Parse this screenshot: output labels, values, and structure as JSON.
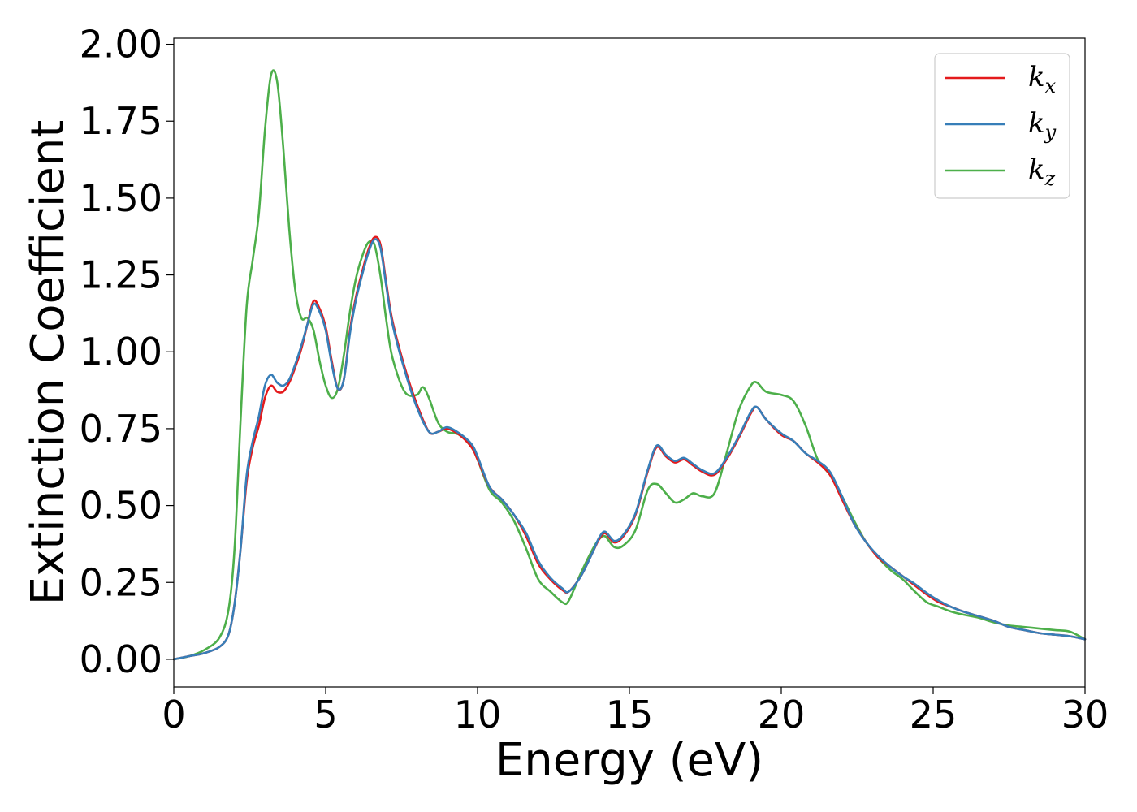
{
  "chart_data": {
    "type": "line",
    "title": "",
    "xlabel": "Energy (eV)",
    "ylabel": "Extinction Coefficient",
    "xlim": [
      0,
      30
    ],
    "ylim": [
      -0.09,
      2.02
    ],
    "x_ticks": [
      0,
      5,
      10,
      15,
      20,
      25,
      30
    ],
    "x_tick_labels": [
      "0",
      "5",
      "10",
      "15",
      "20",
      "25",
      "30"
    ],
    "y_ticks": [
      0,
      0.25,
      0.5,
      0.75,
      1.0,
      1.25,
      1.5,
      1.75,
      2.0
    ],
    "y_tick_labels": [
      "0.00",
      "0.25",
      "0.50",
      "0.75",
      "1.00",
      "1.25",
      "1.50",
      "1.75",
      "2.00"
    ],
    "grid": false,
    "legend": {
      "position": "top-right",
      "entries": [
        {
          "base": "k",
          "sub": "x",
          "color": "#e41a1c"
        },
        {
          "base": "k",
          "sub": "y",
          "color": "#377eb8"
        },
        {
          "base": "k",
          "sub": "z",
          "color": "#4daf4a"
        }
      ]
    },
    "series": [
      {
        "name": "kx",
        "color": "#e41a1c",
        "x": [
          0,
          0.5,
          1.0,
          1.5,
          1.8,
          2.0,
          2.2,
          2.4,
          2.6,
          2.8,
          3.0,
          3.2,
          3.4,
          3.6,
          3.8,
          4.0,
          4.2,
          4.4,
          4.6,
          4.8,
          5.0,
          5.2,
          5.4,
          5.6,
          5.8,
          6.0,
          6.2,
          6.4,
          6.6,
          6.8,
          7.0,
          7.2,
          7.6,
          8.0,
          8.4,
          8.7,
          9.0,
          9.4,
          9.8,
          10.0,
          10.4,
          10.8,
          11.2,
          11.6,
          12.0,
          12.4,
          12.8,
          13.0,
          13.4,
          13.8,
          14.0,
          14.2,
          14.5,
          14.8,
          15.2,
          15.6,
          15.9,
          16.2,
          16.5,
          16.8,
          17.1,
          17.4,
          17.8,
          18.2,
          18.6,
          19.0,
          19.2,
          19.5,
          20.0,
          20.4,
          20.8,
          21.2,
          21.6,
          22.0,
          22.4,
          22.8,
          23.2,
          23.6,
          24.0,
          24.4,
          24.8,
          25.2,
          25.6,
          26.0,
          26.5,
          27.0,
          27.5,
          28.0,
          28.5,
          29.0,
          29.5,
          30.0
        ],
        "y": [
          0.0,
          0.01,
          0.02,
          0.04,
          0.08,
          0.18,
          0.36,
          0.58,
          0.69,
          0.76,
          0.85,
          0.89,
          0.87,
          0.87,
          0.9,
          0.95,
          1.01,
          1.09,
          1.165,
          1.14,
          1.08,
          0.97,
          0.88,
          0.91,
          1.07,
          1.18,
          1.26,
          1.33,
          1.372,
          1.35,
          1.22,
          1.1,
          0.95,
          0.83,
          0.74,
          0.74,
          0.75,
          0.73,
          0.69,
          0.65,
          0.56,
          0.52,
          0.47,
          0.4,
          0.31,
          0.26,
          0.225,
          0.22,
          0.27,
          0.35,
          0.39,
          0.41,
          0.38,
          0.4,
          0.47,
          0.61,
          0.69,
          0.66,
          0.64,
          0.65,
          0.63,
          0.61,
          0.6,
          0.65,
          0.72,
          0.8,
          0.82,
          0.78,
          0.73,
          0.71,
          0.67,
          0.64,
          0.6,
          0.52,
          0.44,
          0.38,
          0.33,
          0.3,
          0.27,
          0.24,
          0.21,
          0.185,
          0.17,
          0.155,
          0.14,
          0.125,
          0.105,
          0.095,
          0.085,
          0.08,
          0.075,
          0.065
        ]
      },
      {
        "name": "ky",
        "color": "#377eb8",
        "x": [
          0,
          0.5,
          1.0,
          1.5,
          1.8,
          2.0,
          2.2,
          2.4,
          2.6,
          2.8,
          3.0,
          3.2,
          3.4,
          3.6,
          3.8,
          4.0,
          4.2,
          4.4,
          4.6,
          4.8,
          5.0,
          5.2,
          5.4,
          5.6,
          5.8,
          6.0,
          6.2,
          6.4,
          6.6,
          6.8,
          7.0,
          7.2,
          7.6,
          8.0,
          8.4,
          8.7,
          9.0,
          9.4,
          9.8,
          10.0,
          10.4,
          10.8,
          11.2,
          11.6,
          12.0,
          12.4,
          12.8,
          13.0,
          13.4,
          13.8,
          14.0,
          14.2,
          14.5,
          14.8,
          15.2,
          15.6,
          15.9,
          16.2,
          16.5,
          16.8,
          17.1,
          17.4,
          17.8,
          18.2,
          18.6,
          19.0,
          19.2,
          19.5,
          20.0,
          20.4,
          20.8,
          21.2,
          21.6,
          22.0,
          22.4,
          22.8,
          23.2,
          23.6,
          24.0,
          24.4,
          24.8,
          25.2,
          25.6,
          26.0,
          26.5,
          27.0,
          27.5,
          28.0,
          28.5,
          29.0,
          29.5,
          30.0
        ],
        "y": [
          0.0,
          0.01,
          0.02,
          0.04,
          0.08,
          0.18,
          0.36,
          0.6,
          0.71,
          0.79,
          0.89,
          0.925,
          0.9,
          0.89,
          0.91,
          0.96,
          1.02,
          1.09,
          1.155,
          1.13,
          1.07,
          0.96,
          0.88,
          0.91,
          1.06,
          1.17,
          1.25,
          1.32,
          1.365,
          1.34,
          1.21,
          1.09,
          0.94,
          0.82,
          0.74,
          0.74,
          0.755,
          0.735,
          0.7,
          0.66,
          0.56,
          0.52,
          0.47,
          0.41,
          0.32,
          0.265,
          0.23,
          0.22,
          0.27,
          0.35,
          0.395,
          0.415,
          0.385,
          0.405,
          0.475,
          0.615,
          0.695,
          0.665,
          0.645,
          0.655,
          0.635,
          0.615,
          0.605,
          0.655,
          0.725,
          0.805,
          0.82,
          0.78,
          0.735,
          0.71,
          0.67,
          0.645,
          0.61,
          0.53,
          0.44,
          0.38,
          0.335,
          0.3,
          0.27,
          0.245,
          0.215,
          0.19,
          0.17,
          0.155,
          0.14,
          0.125,
          0.105,
          0.095,
          0.085,
          0.08,
          0.075,
          0.065
        ]
      },
      {
        "name": "kz",
        "color": "#4daf4a",
        "x": [
          0,
          0.5,
          1.0,
          1.5,
          1.8,
          2.0,
          2.2,
          2.4,
          2.6,
          2.8,
          3.0,
          3.2,
          3.4,
          3.6,
          3.8,
          4.0,
          4.2,
          4.4,
          4.6,
          4.8,
          5.0,
          5.2,
          5.4,
          5.6,
          5.8,
          6.0,
          6.2,
          6.4,
          6.6,
          6.8,
          7.0,
          7.2,
          7.6,
          8.0,
          8.2,
          8.4,
          8.7,
          9.0,
          9.4,
          9.8,
          10.0,
          10.4,
          10.8,
          11.2,
          11.6,
          12.0,
          12.4,
          12.8,
          13.0,
          13.4,
          13.8,
          14.0,
          14.2,
          14.5,
          14.8,
          15.2,
          15.6,
          15.9,
          16.2,
          16.5,
          16.8,
          17.1,
          17.4,
          17.8,
          18.2,
          18.6,
          19.0,
          19.2,
          19.5,
          20.0,
          20.4,
          20.8,
          21.2,
          21.6,
          22.0,
          22.4,
          22.8,
          23.2,
          23.6,
          24.0,
          24.4,
          24.8,
          25.2,
          25.6,
          26.0,
          26.5,
          27.0,
          27.5,
          28.0,
          28.5,
          29.0,
          29.5,
          30.0
        ],
        "y": [
          0.0,
          0.01,
          0.03,
          0.07,
          0.16,
          0.36,
          0.78,
          1.15,
          1.3,
          1.45,
          1.72,
          1.9,
          1.88,
          1.67,
          1.4,
          1.2,
          1.11,
          1.11,
          1.07,
          0.97,
          0.89,
          0.85,
          0.88,
          0.99,
          1.13,
          1.24,
          1.31,
          1.355,
          1.35,
          1.25,
          1.1,
          0.98,
          0.87,
          0.86,
          0.885,
          0.85,
          0.77,
          0.74,
          0.73,
          0.69,
          0.65,
          0.55,
          0.51,
          0.45,
          0.36,
          0.26,
          0.22,
          0.185,
          0.19,
          0.28,
          0.36,
          0.39,
          0.4,
          0.365,
          0.37,
          0.42,
          0.55,
          0.57,
          0.54,
          0.51,
          0.52,
          0.54,
          0.53,
          0.54,
          0.67,
          0.81,
          0.89,
          0.9,
          0.87,
          0.86,
          0.84,
          0.76,
          0.65,
          0.6,
          0.53,
          0.45,
          0.38,
          0.33,
          0.29,
          0.26,
          0.22,
          0.185,
          0.17,
          0.155,
          0.145,
          0.135,
          0.12,
          0.11,
          0.105,
          0.1,
          0.095,
          0.09,
          0.065
        ]
      }
    ]
  }
}
